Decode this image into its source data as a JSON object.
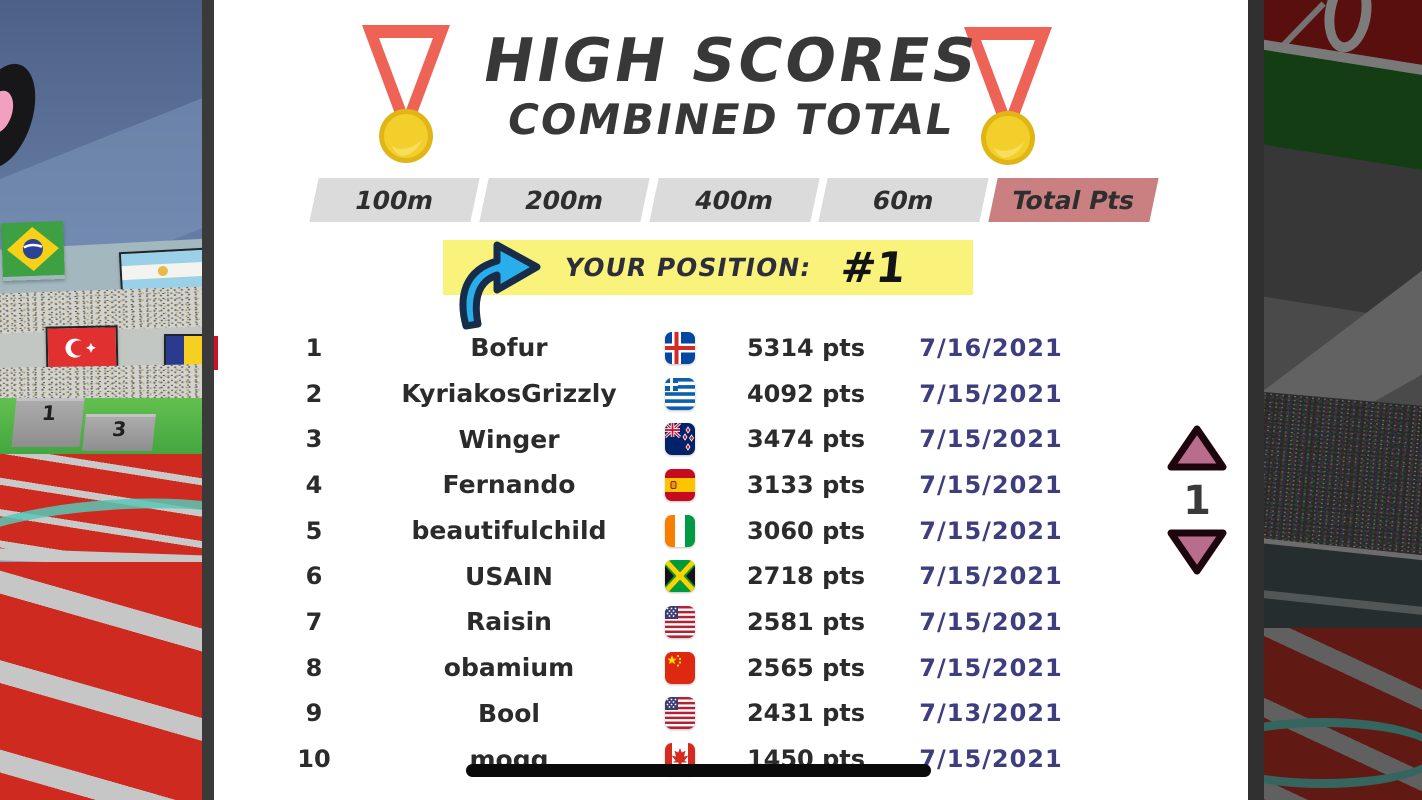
{
  "title": {
    "line1": "HIGH SCORES",
    "line2": "COMBINED TOTAL"
  },
  "tabs": [
    {
      "label": "100m",
      "active": false
    },
    {
      "label": "200m",
      "active": false
    },
    {
      "label": "400m",
      "active": false
    },
    {
      "label": "60m",
      "active": false
    },
    {
      "label": "Total Pts",
      "active": true
    }
  ],
  "position_banner": {
    "label": "YOUR POSITION:",
    "value": "#1",
    "icon": "curved-arrow-right"
  },
  "leaderboard": [
    {
      "rank": "1",
      "name": "Bofur",
      "country": "iceland",
      "points": "5314 pts",
      "date": "7/16/2021"
    },
    {
      "rank": "2",
      "name": "KyriakosGrizzly",
      "country": "greece",
      "points": "4092 pts",
      "date": "7/15/2021"
    },
    {
      "rank": "3",
      "name": "Winger",
      "country": "new-zealand",
      "points": "3474 pts",
      "date": "7/15/2021"
    },
    {
      "rank": "4",
      "name": "Fernando",
      "country": "spain",
      "points": "3133 pts",
      "date": "7/15/2021"
    },
    {
      "rank": "5",
      "name": "beautifulchild",
      "country": "ivory-coast",
      "points": "3060 pts",
      "date": "7/15/2021"
    },
    {
      "rank": "6",
      "name": "USAIN",
      "country": "jamaica",
      "points": "2718 pts",
      "date": "7/15/2021"
    },
    {
      "rank": "7",
      "name": "Raisin",
      "country": "usa",
      "points": "2581 pts",
      "date": "7/15/2021"
    },
    {
      "rank": "8",
      "name": "obamium",
      "country": "china",
      "points": "2565 pts",
      "date": "7/15/2021"
    },
    {
      "rank": "9",
      "name": "Bool",
      "country": "usa",
      "points": "2431 pts",
      "date": "7/13/2021"
    },
    {
      "rank": "10",
      "name": "mogg",
      "country": "canada",
      "points": "1450 pts",
      "date": "7/15/2021"
    }
  ],
  "pagination": {
    "page": "1"
  },
  "background": {
    "podium_labels": [
      "1",
      "3"
    ]
  },
  "colors": {
    "active_tab": "#ca8080",
    "inactive_tab": "#dbdbdb",
    "banner_yellow": "#f9f37c",
    "arrow_blue": "#2aaeeb",
    "date_text": "#3e3e7e",
    "pager_pink": "#b76d8b",
    "track_red": "#ce2a1f",
    "medal_gold": "#f0c420",
    "ribbon_red": "#ed6456"
  }
}
